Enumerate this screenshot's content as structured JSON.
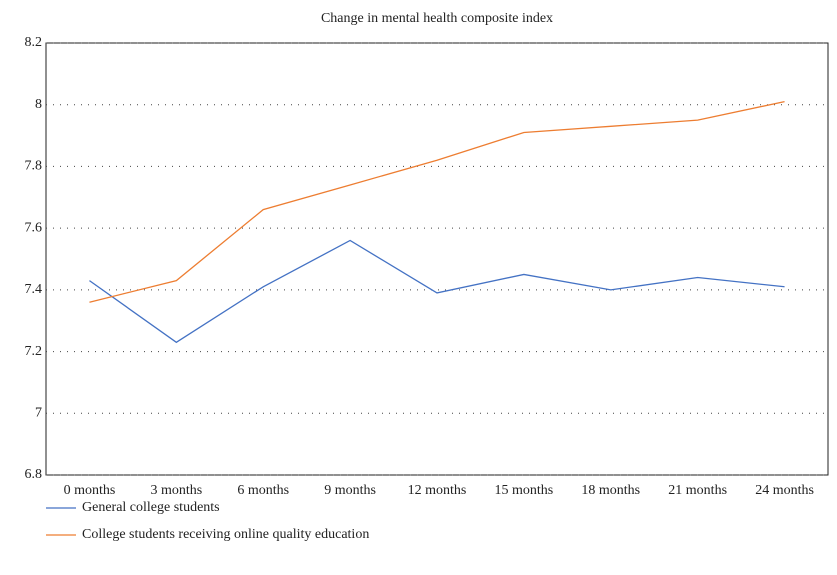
{
  "chart_data": {
    "type": "line",
    "title": "Change in mental health composite index",
    "categories": [
      "0 months",
      "3 months",
      "6 months",
      "9 months",
      "12 months",
      "15 months",
      "18 months",
      "21 months",
      "24 months"
    ],
    "series": [
      {
        "name": "General college students",
        "color": "#4472c4",
        "values": [
          7.43,
          7.23,
          7.41,
          7.56,
          7.39,
          7.45,
          7.4,
          7.44,
          7.41
        ]
      },
      {
        "name": "College students receiving online quality education",
        "color": "#ed7d31",
        "values": [
          7.36,
          7.43,
          7.66,
          7.74,
          7.82,
          7.91,
          7.93,
          7.95,
          8.01
        ]
      }
    ],
    "ylim": [
      6.8,
      8.2
    ],
    "yticks": [
      6.8,
      7,
      7.2,
      7.4,
      7.6,
      7.8,
      8,
      8.2
    ],
    "grid": true,
    "legend": "bottom-left"
  }
}
